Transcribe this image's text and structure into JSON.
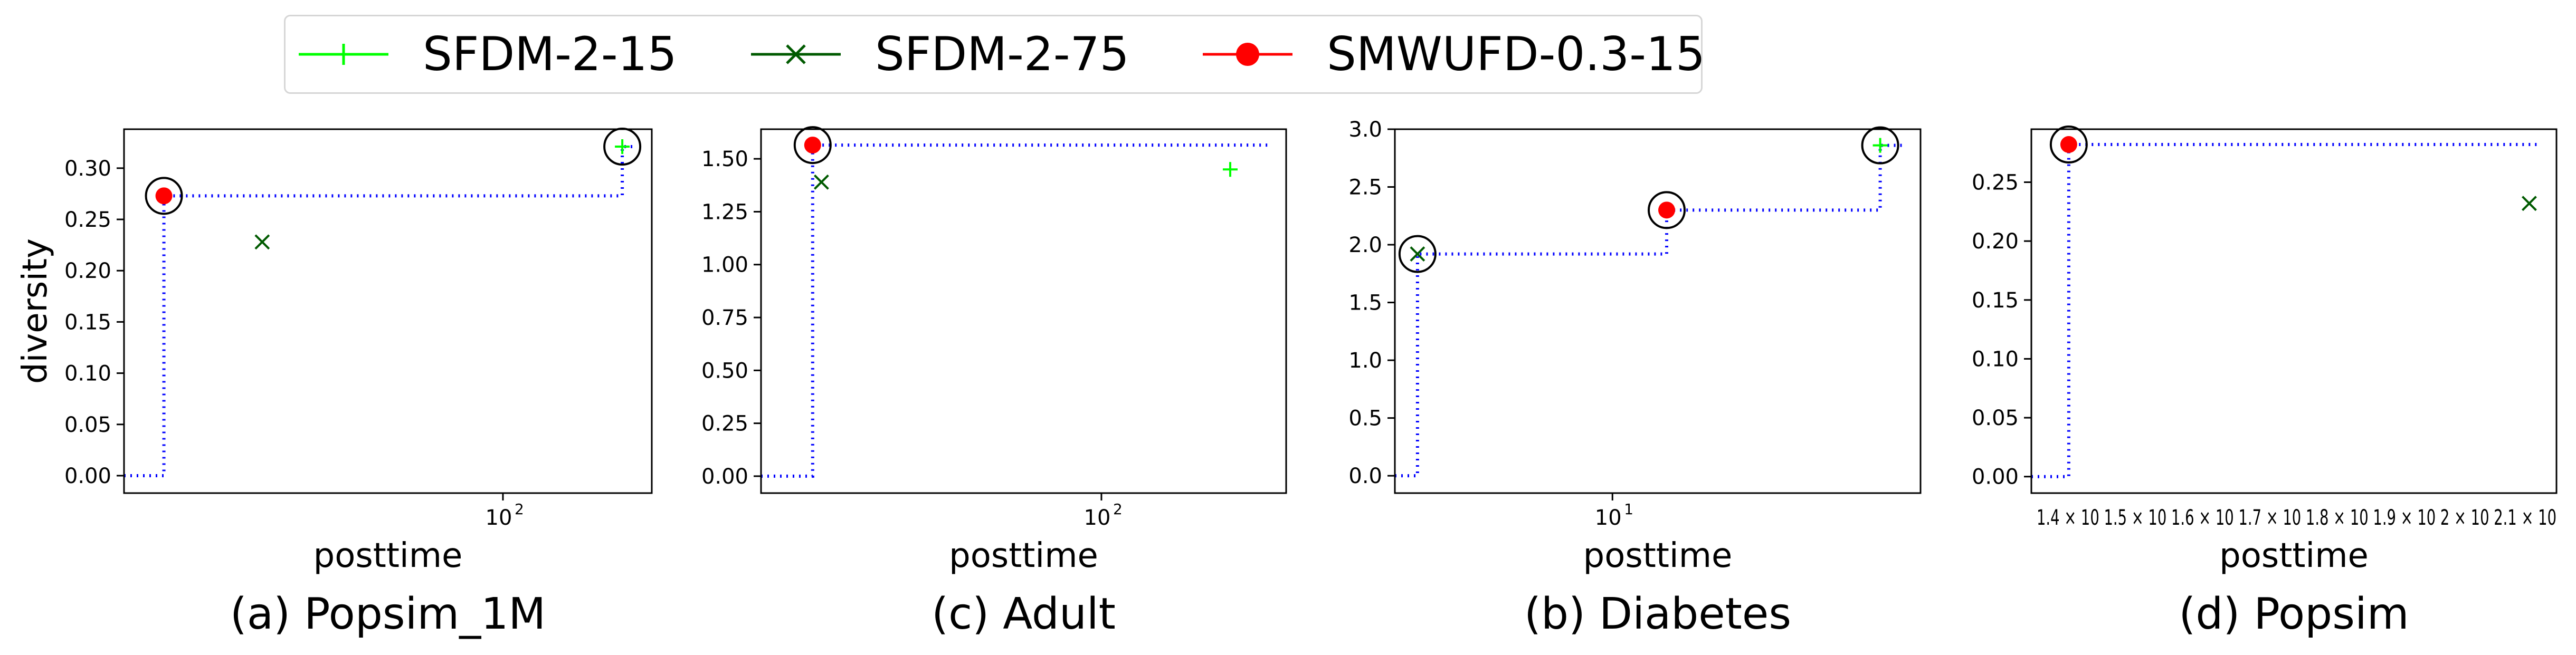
{
  "legend": {
    "items": [
      {
        "label": "SFDM-2-15",
        "color": "#00ff00",
        "marker": "plus"
      },
      {
        "label": "SFDM-2-75",
        "color": "#005a00",
        "marker": "x"
      },
      {
        "label": "SMWUFD-0.3-15",
        "color": "#ff0000",
        "marker": "dot"
      }
    ]
  },
  "frontier_color": "#0000ff",
  "chart_data": [
    {
      "type": "scatter",
      "title": "(a) Popsim_1M",
      "xlabel": "posttime",
      "ylabel": "diversity",
      "xscale": "log",
      "xlim": [
        12,
        230
      ],
      "ylim": [
        -0.017,
        0.338
      ],
      "xticks": [
        {
          "v": 100,
          "base": "10",
          "exp": "2"
        }
      ],
      "yticks": [
        "0.00",
        "0.05",
        "0.10",
        "0.15",
        "0.20",
        "0.25",
        "0.30"
      ],
      "series": [
        {
          "name": "SFDM-2-15",
          "points": [
            [
              195,
              0.321
            ]
          ]
        },
        {
          "name": "SFDM-2-75",
          "points": [
            [
              26,
              0.228
            ]
          ]
        },
        {
          "name": "SMWUFD-0.3-15",
          "points": [
            [
              15,
              0.273
            ]
          ]
        }
      ],
      "frontier": [
        [
          15,
          0.273
        ],
        [
          195,
          0.321
        ]
      ]
    },
    {
      "type": "scatter",
      "title": "(c) Adult",
      "xlabel": "posttime",
      "xscale": "log",
      "xlim": [
        15,
        280
      ],
      "ylim": [
        -0.08,
        1.64
      ],
      "xticks": [
        {
          "v": 100,
          "base": "10",
          "exp": "2"
        }
      ],
      "yticks": [
        "0.00",
        "0.25",
        "0.50",
        "0.75",
        "1.00",
        "1.25",
        "1.50"
      ],
      "series": [
        {
          "name": "SFDM-2-15",
          "points": [
            [
              205,
              1.45
            ]
          ]
        },
        {
          "name": "SFDM-2-75",
          "points": [
            [
              21,
              1.39
            ]
          ]
        },
        {
          "name": "SMWUFD-0.3-15",
          "points": [
            [
              20,
              1.565
            ]
          ]
        }
      ],
      "frontier": [
        [
          20,
          1.565
        ]
      ]
    },
    {
      "type": "scatter",
      "title": "(b) Diabetes",
      "xlabel": "posttime",
      "xscale": "log",
      "xlim": [
        3.0,
        55
      ],
      "ylim": [
        -0.15,
        3.0
      ],
      "xticks": [
        {
          "v": 10,
          "base": "10",
          "exp": "1"
        }
      ],
      "yticks": [
        "0.0",
        "0.5",
        "1.0",
        "1.5",
        "2.0",
        "2.5",
        "3.0"
      ],
      "series": [
        {
          "name": "SFDM-2-15",
          "points": [
            [
              44,
              2.86
            ]
          ]
        },
        {
          "name": "SFDM-2-75",
          "points": [
            [
              3.4,
              1.92
            ]
          ]
        },
        {
          "name": "SMWUFD-0.3-15",
          "points": [
            [
              13.5,
              2.3
            ]
          ]
        }
      ],
      "frontier": [
        [
          3.4,
          1.92
        ],
        [
          13.5,
          2.3
        ],
        [
          44,
          2.86
        ]
      ]
    },
    {
      "type": "scatter",
      "title": "(d) Popsim",
      "xlabel": "posttime",
      "xscale": "log",
      "xlim": [
        12.9,
        22.0
      ],
      "ylim": [
        -0.014,
        0.295
      ],
      "xtick_text": "1.4 × 10  1.5 × 10  1.6 × 10  1.7 × 10  1.8 × 10  1.9 × 10  2 × 10  2.1 × 10",
      "yticks": [
        "0.00",
        "0.05",
        "0.10",
        "0.15",
        "0.20",
        "0.25"
      ],
      "series": [
        {
          "name": "SFDM-2-15",
          "points": [
            [
              13.4,
              0.282
            ]
          ]
        },
        {
          "name": "SFDM-2-75",
          "points": [
            [
              21.4,
              0.232
            ]
          ]
        },
        {
          "name": "SMWUFD-0.3-15",
          "points": [
            [
              13.4,
              0.282
            ]
          ]
        }
      ],
      "frontier": [
        [
          13.4,
          0.282
        ]
      ]
    }
  ]
}
